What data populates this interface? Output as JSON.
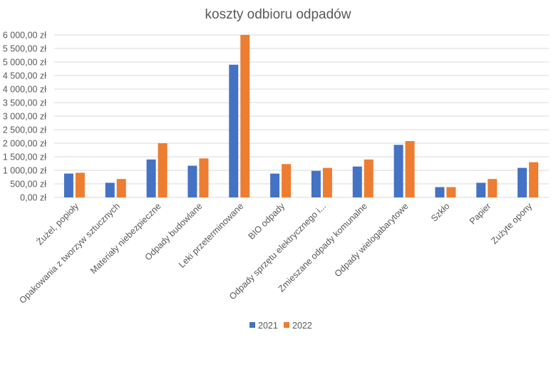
{
  "chart_data": {
    "type": "bar",
    "title": "koszty odbioru odpadów",
    "xlabel": "",
    "ylabel": "",
    "ylim": [
      0,
      6000
    ],
    "ytick_step": 500,
    "ytick_labels": [
      "0,00 zł",
      "500,00 zł",
      "1 000,00 zł",
      "1 500,00 zł",
      "2 000,00 zł",
      "2 500,00 zł",
      "3 000,00 zł",
      "3 500,00 zł",
      "4 000,00 zł",
      "4 500,00 zł",
      "5 000,00 zł",
      "5 500,00 zł",
      "6 000,00 zł"
    ],
    "grid": true,
    "legend_position": "bottom",
    "categories": [
      "Żużel, popioły",
      "Opakowania z tworzyw sztucznych",
      "Materiały niebezpieczne",
      "Odpady budowlane",
      "Leki przeterminowane",
      "BIO odpady",
      "Odpady sprzętu elektrycznego i...",
      "Zmieszane odpady komunalne",
      "Odpady wielogabarytowe",
      "Szkło",
      "Papier",
      "Zużyte opony"
    ],
    "series": [
      {
        "name": "2021",
        "color": "#4472C4",
        "values": [
          880,
          540,
          1400,
          1170,
          4900,
          880,
          980,
          1140,
          1940,
          380,
          540,
          1090
        ]
      },
      {
        "name": "2022",
        "color": "#ED7D31",
        "values": [
          910,
          680,
          2000,
          1440,
          6000,
          1230,
          1090,
          1400,
          2080,
          380,
          680,
          1300
        ]
      }
    ]
  }
}
